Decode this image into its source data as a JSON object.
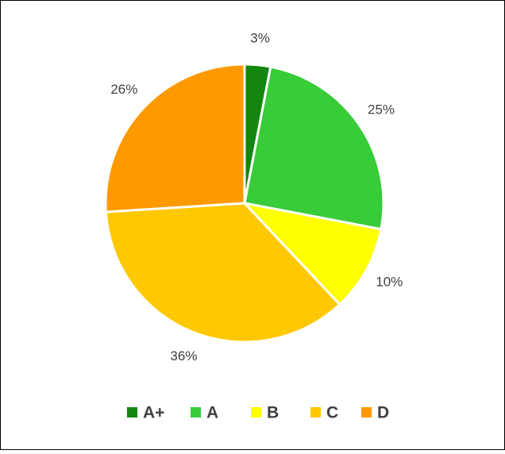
{
  "chart_data": {
    "type": "pie",
    "categories": [
      "A+",
      "A",
      "B",
      "C",
      "D"
    ],
    "values": [
      3,
      25,
      10,
      36,
      26
    ],
    "value_labels": [
      "3%",
      "25%",
      "10%",
      "36%",
      "26%"
    ],
    "colors": [
      "#13860f",
      "#38cc38",
      "#ffff00",
      "#ffc800",
      "#ff9900"
    ],
    "legend": "bottom"
  }
}
